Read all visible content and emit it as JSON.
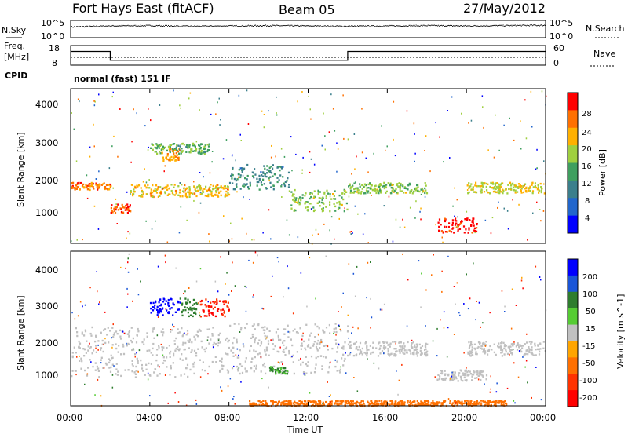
{
  "header": {
    "station": "Fort Hays East (fitACF)",
    "beam": "Beam 05",
    "date": "27/May/2012"
  },
  "sky_panel": {
    "left_label": "N.Sky",
    "right_label": "N.Search",
    "left_ticks": [
      "10^5",
      "10^0"
    ],
    "right_ticks": [
      "10^5",
      "10^0"
    ]
  },
  "freq_panel": {
    "left_label_1": "Freq.",
    "left_label_2": "[MHz]",
    "right_label": "Nave",
    "left_ticks": [
      "18",
      "8"
    ],
    "right_ticks": [
      "60",
      "0"
    ]
  },
  "cpid": {
    "label": "CPID",
    "value": "normal (fast) 151 IF"
  },
  "power_panel": {
    "ylabel": "Slant Range [km]",
    "yticks": [
      "4000",
      "3000",
      "2000",
      "1000"
    ],
    "colorbar_label": "Power [dB]",
    "colorbar_ticks": [
      "28",
      "24",
      "20",
      "16",
      "12",
      "8",
      "4"
    ]
  },
  "velocity_panel": {
    "ylabel": "Slant Range [km]",
    "yticks": [
      "4000",
      "3000",
      "2000",
      "1000"
    ],
    "colorbar_label": "Velocity [m s^-1]",
    "colorbar_ticks": [
      "200",
      "100",
      "50",
      "15",
      "-15",
      "-50",
      "-100",
      "-200"
    ]
  },
  "xaxis": {
    "ticks": [
      "00:00",
      "04:00",
      "08:00",
      "12:00",
      "16:00",
      "20:00",
      "00:00"
    ],
    "label": "Time UT"
  },
  "colors": {
    "power_scale": [
      "#0000ff",
      "#2266cc",
      "#3b7f8c",
      "#3f9f5f",
      "#9fcf3f",
      "#ffb000",
      "#ff7000",
      "#ff0000"
    ],
    "velocity_scale": [
      "#0000ff",
      "#1a55d8",
      "#2e7d2e",
      "#55cc33",
      "#c0c0c0",
      "#ffa500",
      "#ff7000",
      "#ff3300",
      "#ff0000"
    ],
    "ground_scatter": "#c0c0c0"
  },
  "chart_data": [
    {
      "type": "line",
      "name": "sky-search-noise",
      "x_range_hours": [
        0,
        24
      ],
      "ylim_log10": [
        0,
        5
      ],
      "series": [
        {
          "values_log10": [
            3.2,
            3.5,
            3.6,
            3.4,
            3.5,
            3.6,
            3.5,
            3.4,
            3.5,
            3.6,
            3.5,
            3.6,
            3.7
          ]
        }
      ]
    },
    {
      "type": "line",
      "name": "frequency-nave",
      "x": [
        0,
        2,
        2,
        14,
        14,
        24
      ],
      "ylim_freq": [
        8,
        18
      ],
      "ylim_nave": [
        0,
        60
      ],
      "series": [
        {
          "values": [
            15,
            15,
            10.5,
            10.5,
            15,
            15
          ]
        },
        {
          "values": [
            0.4,
            0.4,
            0.4,
            0.4,
            0.4,
            0.4
          ]
        }
      ]
    },
    {
      "type": "heatmap",
      "name": "power",
      "x_range_hours": [
        0,
        24
      ],
      "ylim_km": [
        180,
        4500
      ],
      "zlim": [
        0,
        30
      ],
      "bands": [
        {
          "t0": 0,
          "t1": 2,
          "r0": 1700,
          "r1": 1900,
          "level": 24
        },
        {
          "t0": 2,
          "t1": 3,
          "r0": 1050,
          "r1": 1300,
          "level": 26
        },
        {
          "t0": 3,
          "t1": 8,
          "r0": 1500,
          "r1": 1850,
          "level": 20
        },
        {
          "t0": 4,
          "t1": 7,
          "r0": 2700,
          "r1": 3000,
          "level": 14
        },
        {
          "t0": 4.5,
          "t1": 5.5,
          "r0": 2500,
          "r1": 2850,
          "level": 22
        },
        {
          "t0": 8,
          "t1": 11,
          "r0": 1700,
          "r1": 2400,
          "level": 10
        },
        {
          "t0": 11,
          "t1": 14,
          "r0": 1100,
          "r1": 1700,
          "level": 16
        },
        {
          "t0": 14,
          "t1": 18,
          "r0": 1600,
          "r1": 1900,
          "level": 16
        },
        {
          "t0": 18.5,
          "t1": 20.5,
          "r0": 500,
          "r1": 900,
          "level": 28
        },
        {
          "t0": 20,
          "t1": 24,
          "r0": 1600,
          "r1": 1900,
          "level": 18
        }
      ]
    },
    {
      "type": "heatmap",
      "name": "velocity",
      "x_range_hours": [
        0,
        24
      ],
      "ylim_km": [
        180,
        4500
      ],
      "zlim": [
        -200,
        200
      ],
      "bands": [
        {
          "t0": 0,
          "t1": 8,
          "r0": 1000,
          "r1": 2400,
          "level": 0
        },
        {
          "t0": 4,
          "t1": 5.5,
          "r0": 2700,
          "r1": 3200,
          "level": 200
        },
        {
          "t0": 5.5,
          "t1": 6.5,
          "r0": 2700,
          "r1": 3200,
          "level": 60
        },
        {
          "t0": 6.5,
          "t1": 8,
          "r0": 2700,
          "r1": 3200,
          "level": -150
        },
        {
          "t0": 8,
          "t1": 14,
          "r0": 1100,
          "r1": 2500,
          "level": 0
        },
        {
          "t0": 10,
          "t1": 11,
          "r0": 1100,
          "r1": 1300,
          "level": 30
        },
        {
          "t0": 14,
          "t1": 18,
          "r0": 1600,
          "r1": 2000,
          "level": 0
        },
        {
          "t0": 18.5,
          "t1": 21,
          "r0": 900,
          "r1": 1200,
          "level": 0
        },
        {
          "t0": 20,
          "t1": 24,
          "r0": 1600,
          "r1": 2000,
          "level": 0
        },
        {
          "t0": 9,
          "t1": 22,
          "r0": 200,
          "r1": 350,
          "level": -60
        }
      ]
    }
  ]
}
